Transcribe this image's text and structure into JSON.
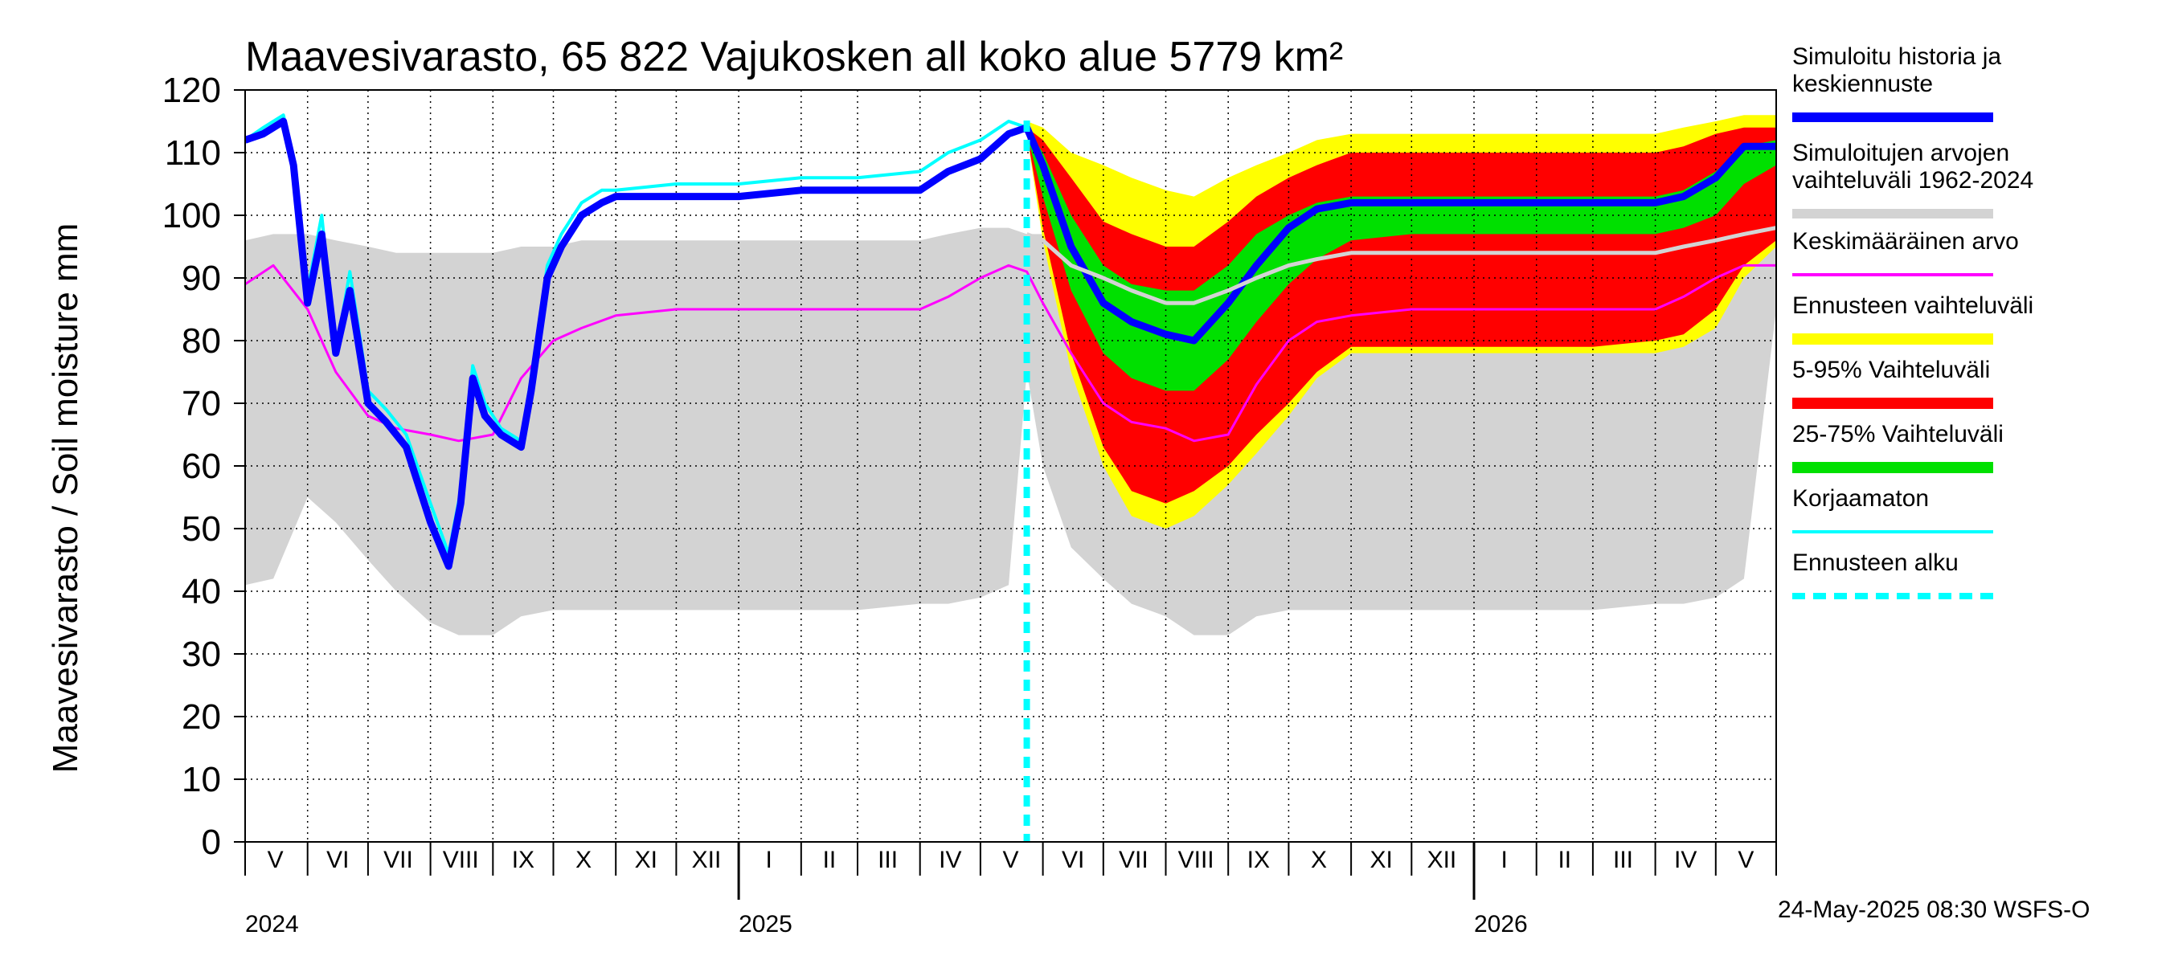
{
  "chart_data": {
    "type": "area",
    "title": "Maavesivarasto, 65 822 Vajukosken all koko alue 5779 km²",
    "ylabel": "Maavesivarasto / Soil moisture   mm",
    "ylim": [
      0,
      120
    ],
    "yticks": [
      0,
      10,
      20,
      30,
      40,
      50,
      60,
      70,
      80,
      90,
      100,
      110,
      120
    ],
    "xlim": [
      "2024-05-01",
      "2026-05-31"
    ],
    "grid": true,
    "month_labels": [
      {
        "label": "V",
        "date": "2024-05-16"
      },
      {
        "label": "VI",
        "date": "2024-06-16"
      },
      {
        "label": "VII",
        "date": "2024-07-16"
      },
      {
        "label": "VIII",
        "date": "2024-08-16"
      },
      {
        "label": "IX",
        "date": "2024-09-16"
      },
      {
        "label": "X",
        "date": "2024-10-16"
      },
      {
        "label": "XI",
        "date": "2024-11-16"
      },
      {
        "label": "XII",
        "date": "2024-12-16"
      },
      {
        "label": "I",
        "date": "2025-01-16"
      },
      {
        "label": "II",
        "date": "2025-02-15"
      },
      {
        "label": "III",
        "date": "2025-03-16"
      },
      {
        "label": "IV",
        "date": "2025-04-16"
      },
      {
        "label": "V",
        "date": "2025-05-16"
      },
      {
        "label": "VI",
        "date": "2025-06-16"
      },
      {
        "label": "VII",
        "date": "2025-07-16"
      },
      {
        "label": "VIII",
        "date": "2025-08-16"
      },
      {
        "label": "IX",
        "date": "2025-09-16"
      },
      {
        "label": "X",
        "date": "2025-10-16"
      },
      {
        "label": "XI",
        "date": "2025-11-16"
      },
      {
        "label": "XII",
        "date": "2025-12-16"
      },
      {
        "label": "I",
        "date": "2026-01-16"
      },
      {
        "label": "II",
        "date": "2026-02-15"
      },
      {
        "label": "III",
        "date": "2026-03-16"
      },
      {
        "label": "IV",
        "date": "2026-04-16"
      },
      {
        "label": "V",
        "date": "2026-05-16"
      }
    ],
    "year_labels": [
      {
        "label": "2024",
        "date": "2024-05-01"
      },
      {
        "label": "2025",
        "date": "2025-01-01"
      },
      {
        "label": "2026",
        "date": "2026-01-01"
      }
    ],
    "forecast_start": "2025-05-24",
    "bands": [
      {
        "name": "Simuloitujen arvojen vaihteluväli 1962-2024",
        "color": "#d3d3d3",
        "x": [
          "2024-05-01",
          "2024-05-15",
          "2024-06-01",
          "2024-06-15",
          "2024-07-01",
          "2024-07-15",
          "2024-08-01",
          "2024-08-15",
          "2024-09-01",
          "2024-09-15",
          "2024-10-01",
          "2024-10-15",
          "2024-11-01",
          "2024-12-01",
          "2025-01-01",
          "2025-02-01",
          "2025-03-01",
          "2025-04-01",
          "2025-04-15",
          "2025-05-01",
          "2025-05-15",
          "2025-05-24",
          "2025-06-01",
          "2025-06-15",
          "2025-07-01",
          "2025-07-15",
          "2025-08-01",
          "2025-08-15",
          "2025-09-01",
          "2025-09-15",
          "2025-10-01",
          "2025-10-15",
          "2025-11-01",
          "2025-12-01",
          "2026-01-01",
          "2026-02-01",
          "2026-03-01",
          "2026-04-01",
          "2026-04-15",
          "2026-05-01",
          "2026-05-15",
          "2026-05-31"
        ],
        "lower": [
          41,
          42,
          55,
          51,
          45,
          40,
          35,
          33,
          33,
          36,
          37,
          37,
          37,
          37,
          37,
          37,
          37,
          38,
          38,
          39,
          41,
          75,
          60,
          47,
          42,
          38,
          36,
          33,
          33,
          36,
          37,
          37,
          37,
          37,
          37,
          37,
          37,
          38,
          38,
          39,
          42,
          85
        ],
        "upper": [
          96,
          97,
          97,
          96,
          95,
          94,
          94,
          94,
          94,
          95,
          95,
          96,
          96,
          96,
          96,
          96,
          96,
          96,
          97,
          98,
          98,
          97,
          97,
          96,
          95,
          94,
          94,
          94,
          94,
          95,
          95,
          96,
          96,
          96,
          96,
          96,
          96,
          96,
          97,
          98,
          98,
          99
        ]
      },
      {
        "name": "Ennusteen vaihteluväli",
        "color": "#ffff00",
        "x": [
          "2025-05-24",
          "2025-06-01",
          "2025-06-15",
          "2025-07-01",
          "2025-07-15",
          "2025-08-01",
          "2025-08-15",
          "2025-09-01",
          "2025-09-15",
          "2025-10-01",
          "2025-10-15",
          "2025-11-01",
          "2025-12-01",
          "2026-01-01",
          "2026-02-01",
          "2026-03-01",
          "2026-04-01",
          "2026-04-15",
          "2026-05-01",
          "2026-05-15",
          "2026-05-31"
        ],
        "lower": [
          113,
          96,
          75,
          60,
          52,
          50,
          52,
          57,
          62,
          68,
          74,
          78,
          78,
          78,
          78,
          78,
          78,
          79,
          82,
          90,
          95
        ],
        "upper": [
          115,
          114,
          110,
          108,
          106,
          104,
          103,
          106,
          108,
          110,
          112,
          113,
          113,
          113,
          113,
          113,
          113,
          114,
          115,
          116,
          116
        ]
      },
      {
        "name": "5-95% Vaihteluväli",
        "color": "#ff0000",
        "x": [
          "2025-05-24",
          "2025-06-01",
          "2025-06-15",
          "2025-07-01",
          "2025-07-15",
          "2025-08-01",
          "2025-08-15",
          "2025-09-01",
          "2025-09-15",
          "2025-10-01",
          "2025-10-15",
          "2025-11-01",
          "2025-12-01",
          "2026-01-01",
          "2026-02-01",
          "2026-03-01",
          "2026-04-01",
          "2026-04-15",
          "2026-05-01",
          "2026-05-15",
          "2026-05-31"
        ],
        "lower": [
          113,
          98,
          78,
          63,
          56,
          54,
          56,
          60,
          65,
          70,
          75,
          79,
          79,
          79,
          79,
          79,
          80,
          81,
          85,
          92,
          96
        ],
        "upper": [
          114,
          112,
          106,
          99,
          97,
          95,
          95,
          99,
          103,
          106,
          108,
          110,
          110,
          110,
          110,
          110,
          110,
          111,
          113,
          114,
          114
        ]
      },
      {
        "name": "25-75% Vaihteluväli",
        "color": "#00e000",
        "x": [
          "2025-05-24",
          "2025-06-01",
          "2025-06-15",
          "2025-07-01",
          "2025-07-15",
          "2025-08-01",
          "2025-08-15",
          "2025-09-01",
          "2025-09-15",
          "2025-10-01",
          "2025-10-15",
          "2025-11-01",
          "2025-12-01",
          "2026-01-01",
          "2026-02-01",
          "2026-03-01",
          "2026-04-01",
          "2026-04-15",
          "2026-05-01",
          "2026-05-15",
          "2026-05-31"
        ],
        "lower": [
          113,
          103,
          88,
          78,
          74,
          72,
          72,
          77,
          83,
          89,
          93,
          96,
          97,
          97,
          97,
          97,
          97,
          98,
          100,
          105,
          108
        ],
        "upper": [
          114,
          110,
          100,
          92,
          89,
          88,
          88,
          92,
          97,
          100,
          102,
          103,
          103,
          103,
          103,
          103,
          103,
          104,
          107,
          111,
          112
        ]
      }
    ],
    "series": [
      {
        "name": "Keskimääräinen arvo",
        "color": "#ff00ff",
        "width": 3,
        "x": [
          "2024-05-01",
          "2024-05-15",
          "2024-06-01",
          "2024-06-15",
          "2024-07-01",
          "2024-07-15",
          "2024-08-01",
          "2024-08-15",
          "2024-09-01",
          "2024-09-15",
          "2024-10-01",
          "2024-10-15",
          "2024-11-01",
          "2024-12-01",
          "2025-01-01",
          "2025-02-01",
          "2025-03-01",
          "2025-04-01",
          "2025-04-15",
          "2025-05-01",
          "2025-05-15",
          "2025-05-24",
          "2025-06-01",
          "2025-06-15",
          "2025-07-01",
          "2025-07-15",
          "2025-08-01",
          "2025-08-15",
          "2025-09-01",
          "2025-09-15",
          "2025-10-01",
          "2025-10-15",
          "2025-11-01",
          "2025-12-01",
          "2026-01-01",
          "2026-02-01",
          "2026-03-01",
          "2026-04-01",
          "2026-04-15",
          "2026-05-01",
          "2026-05-15",
          "2026-05-31"
        ],
        "y": [
          89,
          92,
          85,
          75,
          68,
          66,
          65,
          64,
          65,
          74,
          80,
          82,
          84,
          85,
          85,
          85,
          85,
          85,
          87,
          90,
          92,
          91,
          86,
          78,
          70,
          67,
          66,
          64,
          65,
          73,
          80,
          83,
          84,
          85,
          85,
          85,
          85,
          85,
          87,
          90,
          92,
          92
        ]
      },
      {
        "name": "Korjaamaton",
        "color": "#00ffff",
        "width": 4,
        "x": [
          "2024-05-01",
          "2024-05-10",
          "2024-05-20",
          "2024-05-25",
          "2024-06-01",
          "2024-06-08",
          "2024-06-15",
          "2024-06-22",
          "2024-07-01",
          "2024-07-10",
          "2024-07-20",
          "2024-08-01",
          "2024-08-10",
          "2024-08-16",
          "2024-08-22",
          "2024-08-28",
          "2024-09-05",
          "2024-09-15",
          "2024-09-20",
          "2024-09-28",
          "2024-10-05",
          "2024-10-15",
          "2024-10-25",
          "2024-11-01",
          "2024-12-01",
          "2025-01-01",
          "2025-02-01",
          "2025-03-01",
          "2025-04-01",
          "2025-04-15",
          "2025-05-01",
          "2025-05-15",
          "2025-05-24"
        ],
        "y": [
          112,
          114,
          116,
          109,
          88,
          100,
          78,
          91,
          72,
          69,
          65,
          54,
          46,
          56,
          76,
          70,
          66,
          64,
          74,
          92,
          97,
          102,
          104,
          104,
          105,
          105,
          106,
          106,
          107,
          110,
          112,
          115,
          114
        ]
      },
      {
        "name": "Simuloitu historia ja keskiennuste",
        "color": "#0000ff",
        "width": 9,
        "x": [
          "2024-05-01",
          "2024-05-10",
          "2024-05-20",
          "2024-05-25",
          "2024-06-01",
          "2024-06-08",
          "2024-06-15",
          "2024-06-22",
          "2024-07-01",
          "2024-07-10",
          "2024-07-20",
          "2024-08-01",
          "2024-08-10",
          "2024-08-16",
          "2024-08-22",
          "2024-08-28",
          "2024-09-05",
          "2024-09-15",
          "2024-09-20",
          "2024-09-28",
          "2024-10-05",
          "2024-10-15",
          "2024-10-25",
          "2024-11-01",
          "2024-12-01",
          "2025-01-01",
          "2025-02-01",
          "2025-03-01",
          "2025-04-01",
          "2025-04-15",
          "2025-05-01",
          "2025-05-15",
          "2025-05-24",
          "2025-06-01",
          "2025-06-15",
          "2025-07-01",
          "2025-07-15",
          "2025-08-01",
          "2025-08-15",
          "2025-09-01",
          "2025-09-15",
          "2025-10-01",
          "2025-10-15",
          "2025-11-01",
          "2025-12-01",
          "2026-01-01",
          "2026-02-01",
          "2026-03-01",
          "2026-04-01",
          "2026-04-15",
          "2026-05-01",
          "2026-05-15",
          "2026-05-31"
        ],
        "y": [
          112,
          113,
          115,
          108,
          86,
          97,
          78,
          88,
          70,
          67,
          63,
          51,
          44,
          54,
          74,
          68,
          65,
          63,
          72,
          90,
          95,
          100,
          102,
          103,
          103,
          103,
          104,
          104,
          104,
          107,
          109,
          113,
          114,
          108,
          95,
          86,
          83,
          81,
          80,
          86,
          92,
          98,
          101,
          102,
          102,
          102,
          102,
          102,
          102,
          103,
          106,
          111,
          111
        ]
      },
      {
        "name": "Simuloitujen arvojen vaihteluväli 1962-2024",
        "color": "#d3d3d3",
        "width": 5,
        "x": [
          "2025-05-24",
          "2025-06-01",
          "2025-06-15",
          "2025-07-01",
          "2025-07-15",
          "2025-08-01",
          "2025-08-15",
          "2025-09-01",
          "2025-09-15",
          "2025-10-01",
          "2025-10-15",
          "2025-11-01",
          "2025-12-01",
          "2026-01-01",
          "2026-02-01",
          "2026-03-01",
          "2026-04-01",
          "2026-04-15",
          "2026-05-01",
          "2026-05-15",
          "2026-05-31"
        ],
        "y": [
          97,
          96,
          92,
          90,
          88,
          86,
          86,
          88,
          90,
          92,
          93,
          94,
          94,
          94,
          94,
          94,
          94,
          95,
          96,
          97,
          98
        ]
      }
    ]
  },
  "legend": [
    {
      "label": "Simuloitu historia ja keskiennuste",
      "lines": [
        "Simuloitu historia ja",
        "keskiennuste"
      ],
      "color": "#0000ff",
      "style": "solid",
      "thickness": 12
    },
    {
      "label": "Simuloitujen arvojen vaihteluväli 1962-2024",
      "lines": [
        "Simuloitujen arvojen",
        "vaihteluväli 1962-2024"
      ],
      "color": "#d3d3d3",
      "style": "solid",
      "thickness": 12
    },
    {
      "label": "Keskimääräinen arvo",
      "lines": [
        "Keskimääräinen arvo"
      ],
      "color": "#ff00ff",
      "style": "solid",
      "thickness": 4
    },
    {
      "label": "Ennusteen vaihteluväli",
      "lines": [
        "Ennusteen vaihteluväli"
      ],
      "color": "#ffff00",
      "style": "solid",
      "thickness": 14
    },
    {
      "label": "5-95% Vaihteluväli",
      "lines": [
        "5-95% Vaihteluväli"
      ],
      "color": "#ff0000",
      "style": "solid",
      "thickness": 14
    },
    {
      "label": "25-75% Vaihteluväli",
      "lines": [
        "25-75% Vaihteluväli"
      ],
      "color": "#00e000",
      "style": "solid",
      "thickness": 14
    },
    {
      "label": "Korjaamaton",
      "lines": [
        "Korjaamaton"
      ],
      "color": "#00ffff",
      "style": "solid",
      "thickness": 4
    },
    {
      "label": "Ennusteen alku",
      "lines": [
        "Ennusteen alku"
      ],
      "color": "#00ffff",
      "style": "dashed",
      "thickness": 8
    }
  ],
  "footer": "24-May-2025 08:30 WSFS-O"
}
